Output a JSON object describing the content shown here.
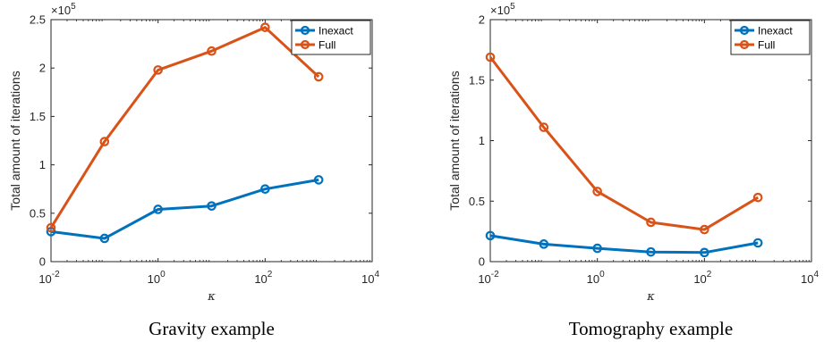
{
  "chart_data": [
    {
      "type": "line",
      "caption": "Gravity example",
      "xlabel": "κ",
      "ylabel": "Total amount of iterations",
      "xscale": "log",
      "xlim": [
        0.01,
        10000
      ],
      "ylim": [
        0,
        250000
      ],
      "y_multiplier": "×10",
      "y_multiplier_exp": "5",
      "x_ticks": [
        {
          "value": 0.01,
          "base": "10",
          "exp": "-2"
        },
        {
          "value": 1,
          "base": "10",
          "exp": "0"
        },
        {
          "value": 100,
          "base": "10",
          "exp": "2"
        },
        {
          "value": 10000,
          "base": "10",
          "exp": "4"
        }
      ],
      "y_ticks": [
        {
          "value": 0,
          "label": "0"
        },
        {
          "value": 50000,
          "label": "0.5"
        },
        {
          "value": 100000,
          "label": "1"
        },
        {
          "value": 150000,
          "label": "1.5"
        },
        {
          "value": 200000,
          "label": "2"
        },
        {
          "value": 250000,
          "label": "2.5"
        }
      ],
      "x": [
        0.01,
        0.1,
        1,
        10,
        100,
        1000
      ],
      "series": [
        {
          "name": "Inexact",
          "color": "#0072BD",
          "values": [
            31000,
            24000,
            54000,
            57500,
            75000,
            84500
          ]
        },
        {
          "name": "Full",
          "color": "#D95319",
          "values": [
            35000,
            124000,
            198000,
            217500,
            242000,
            191000
          ]
        }
      ],
      "legend_position": "top-right",
      "grid": false
    },
    {
      "type": "line",
      "caption": "Tomography example",
      "xlabel": "κ",
      "ylabel": "Total amount of iterations",
      "xscale": "log",
      "xlim": [
        0.01,
        10000
      ],
      "ylim": [
        0,
        200000
      ],
      "y_multiplier": "×10",
      "y_multiplier_exp": "5",
      "x_ticks": [
        {
          "value": 0.01,
          "base": "10",
          "exp": "-2"
        },
        {
          "value": 1,
          "base": "10",
          "exp": "0"
        },
        {
          "value": 100,
          "base": "10",
          "exp": "2"
        },
        {
          "value": 10000,
          "base": "10",
          "exp": "4"
        }
      ],
      "y_ticks": [
        {
          "value": 0,
          "label": "0"
        },
        {
          "value": 50000,
          "label": "0.5"
        },
        {
          "value": 100000,
          "label": "1"
        },
        {
          "value": 150000,
          "label": "1.5"
        },
        {
          "value": 200000,
          "label": "2"
        }
      ],
      "x": [
        0.01,
        0.1,
        1,
        10,
        100,
        1000
      ],
      "series": [
        {
          "name": "Inexact",
          "color": "#0072BD",
          "values": [
            21500,
            14500,
            11000,
            8000,
            7500,
            15500
          ]
        },
        {
          "name": "Full",
          "color": "#D95319",
          "values": [
            169000,
            111000,
            58000,
            32500,
            26500,
            53000
          ]
        }
      ],
      "legend_position": "top-right",
      "grid": false
    }
  ]
}
